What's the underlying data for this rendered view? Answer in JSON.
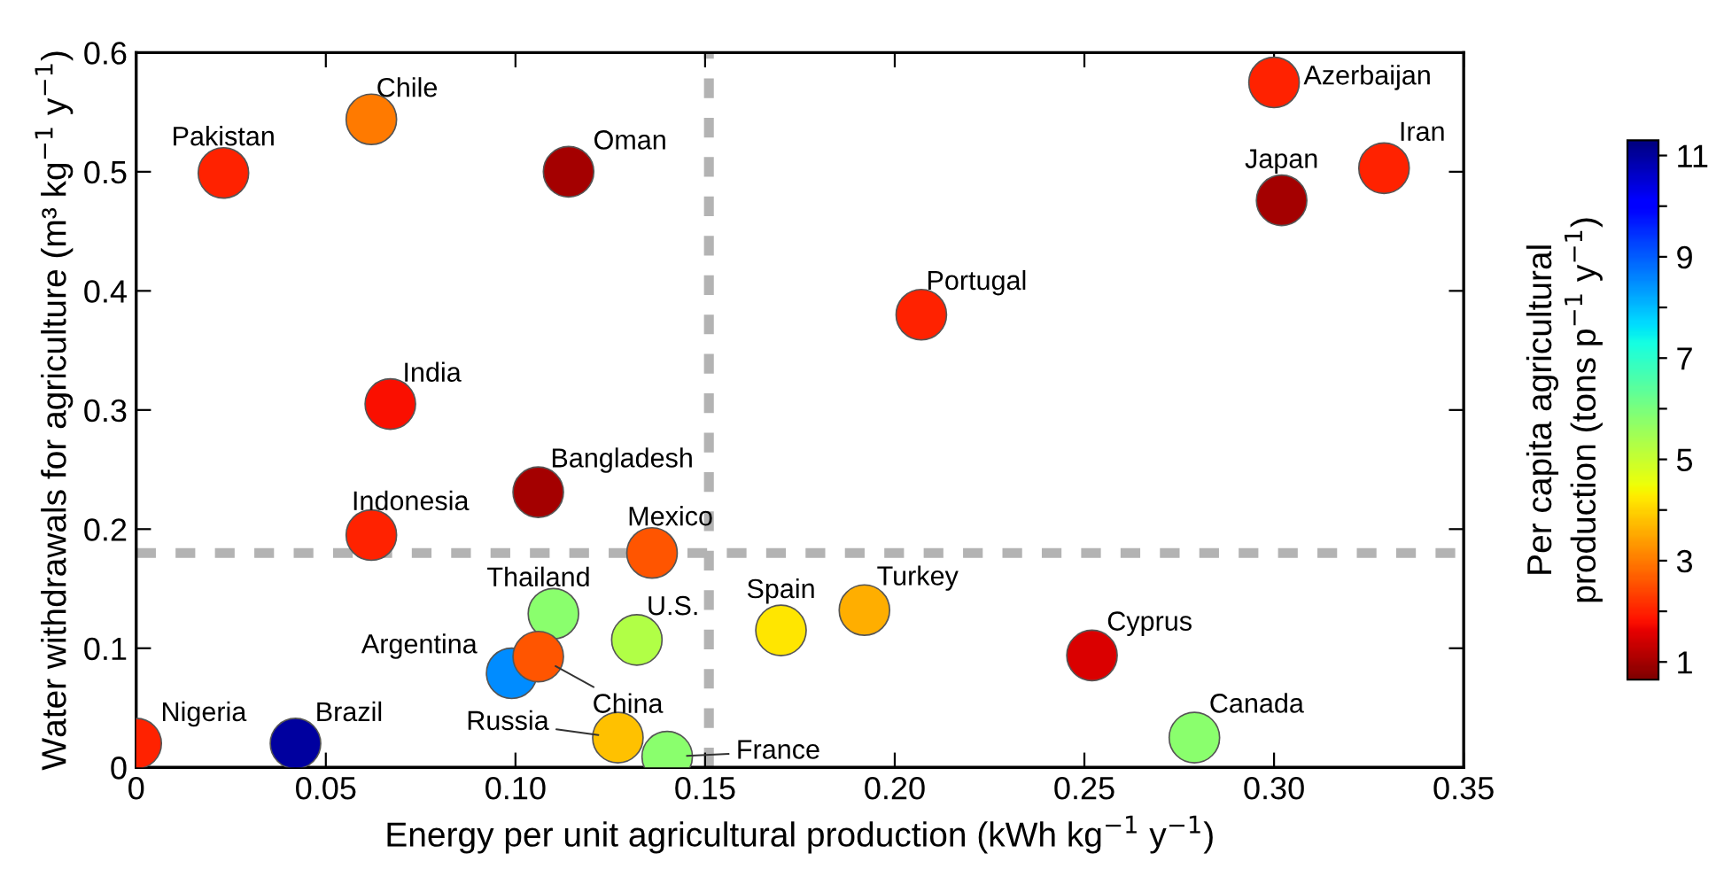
{
  "chart_data": {
    "type": "scatter",
    "xlabel": "Energy per unit agricultural production (kWh kg$^{−1}$ y$^{−1}$)",
    "ylabel": "Water withdrawals for agriculture (m³ kg$^{−1}$ y$^{−1}$)",
    "clabel": "Per capita agricultural\nproduction (tons p$^{−1}$ y$^{−1}$)",
    "x": [
      0.023,
      0.062,
      0.114,
      0.067,
      0.106,
      0.062,
      0.136,
      0.11,
      0.132,
      0.099,
      0.106,
      0.0,
      0.042,
      0.127,
      0.14,
      0.17,
      0.192,
      0.252,
      0.279,
      0.207,
      0.3,
      0.329,
      0.302
    ],
    "values": [
      0.499,
      0.544,
      0.5,
      0.305,
      0.231,
      0.195,
      0.18,
      0.129,
      0.107,
      0.079,
      0.093,
      0.02,
      0.02,
      0.025,
      0.009,
      0.115,
      0.132,
      0.094,
      0.025,
      0.38,
      0.575,
      0.503,
      0.476
    ],
    "cvalues": [
      2.0,
      3.0,
      1.0,
      1.8,
      1.0,
      2.0,
      2.6,
      5.8,
      5.3,
      8.5,
      2.6,
      2.0,
      11.0,
      3.8,
      5.8,
      4.2,
      3.6,
      1.5,
      5.8,
      2.0,
      2.0,
      2.0,
      1.0
    ],
    "clim": [
      0.65,
      11.3
    ],
    "cticks": [
      1,
      {
        "value": 2,
        "label": null
      },
      3,
      {
        "value": 4,
        "label": null
      },
      5,
      {
        "value": 6,
        "label": null
      },
      7,
      {
        "value": 8,
        "label": null
      },
      9,
      {
        "value": 10,
        "label": null
      },
      11
    ],
    "marker": "circle",
    "xlim": [
      0,
      0.35
    ],
    "xticks": [
      0,
      0.05,
      {
        "value": 0.1,
        "label": "0.10"
      },
      0.15,
      {
        "value": 0.2,
        "label": "0.20"
      },
      0.25,
      {
        "value": 0.3,
        "label": "0.30"
      },
      0.35
    ],
    "ylim": [
      0,
      0.6
    ],
    "yticks": [
      0,
      0.1,
      0.2,
      0.3,
      0.4,
      0.5,
      0.6
    ],
    "grid": false,
    "ref_lines": [
      {
        "axis": "x",
        "value": 0.151,
        "color": "#b3b3b3",
        "line_style": "dashed"
      },
      {
        "axis": "y",
        "value": 0.18,
        "color": "#b3b3b3",
        "line_style": "dashed"
      }
    ],
    "annotations": [
      {
        "text": "Pakistan",
        "x": 0.023,
        "y": 0.499
      },
      {
        "text": "Chile",
        "x": 0.062,
        "y": 0.544
      },
      {
        "text": "Oman",
        "x": 0.114,
        "y": 0.5
      },
      {
        "text": "India",
        "x": 0.067,
        "y": 0.305
      },
      {
        "text": "Bangladesh",
        "x": 0.106,
        "y": 0.231
      },
      {
        "text": "Indonesia",
        "x": 0.062,
        "y": 0.195
      },
      {
        "text": "Mexico",
        "x": 0.136,
        "y": 0.18
      },
      {
        "text": "Thailand",
        "x": 0.11,
        "y": 0.129
      },
      {
        "text": "U.S.",
        "x": 0.132,
        "y": 0.107
      },
      {
        "text": "Argentina",
        "x": 0.099,
        "y": 0.079
      },
      {
        "text": "China",
        "x": 0.106,
        "y": 0.093
      },
      {
        "text": "Nigeria",
        "x": 0.0,
        "y": 0.02
      },
      {
        "text": "Brazil",
        "x": 0.042,
        "y": 0.02
      },
      {
        "text": "Russia",
        "x": 0.127,
        "y": 0.025
      },
      {
        "text": "France",
        "x": 0.14,
        "y": 0.009
      },
      {
        "text": "Spain",
        "x": 0.17,
        "y": 0.115
      },
      {
        "text": "Turkey",
        "x": 0.192,
        "y": 0.132
      },
      {
        "text": "Cyprus",
        "x": 0.252,
        "y": 0.094
      },
      {
        "text": "Canada",
        "x": 0.279,
        "y": 0.025
      },
      {
        "text": "Portugal",
        "x": 0.207,
        "y": 0.38
      },
      {
        "text": "Azerbaijan",
        "x": 0.3,
        "y": 0.575
      },
      {
        "text": "Japan",
        "x": 0.302,
        "y": 0.476
      },
      {
        "text": "Iran",
        "x": 0.329,
        "y": 0.503
      }
    ]
  }
}
